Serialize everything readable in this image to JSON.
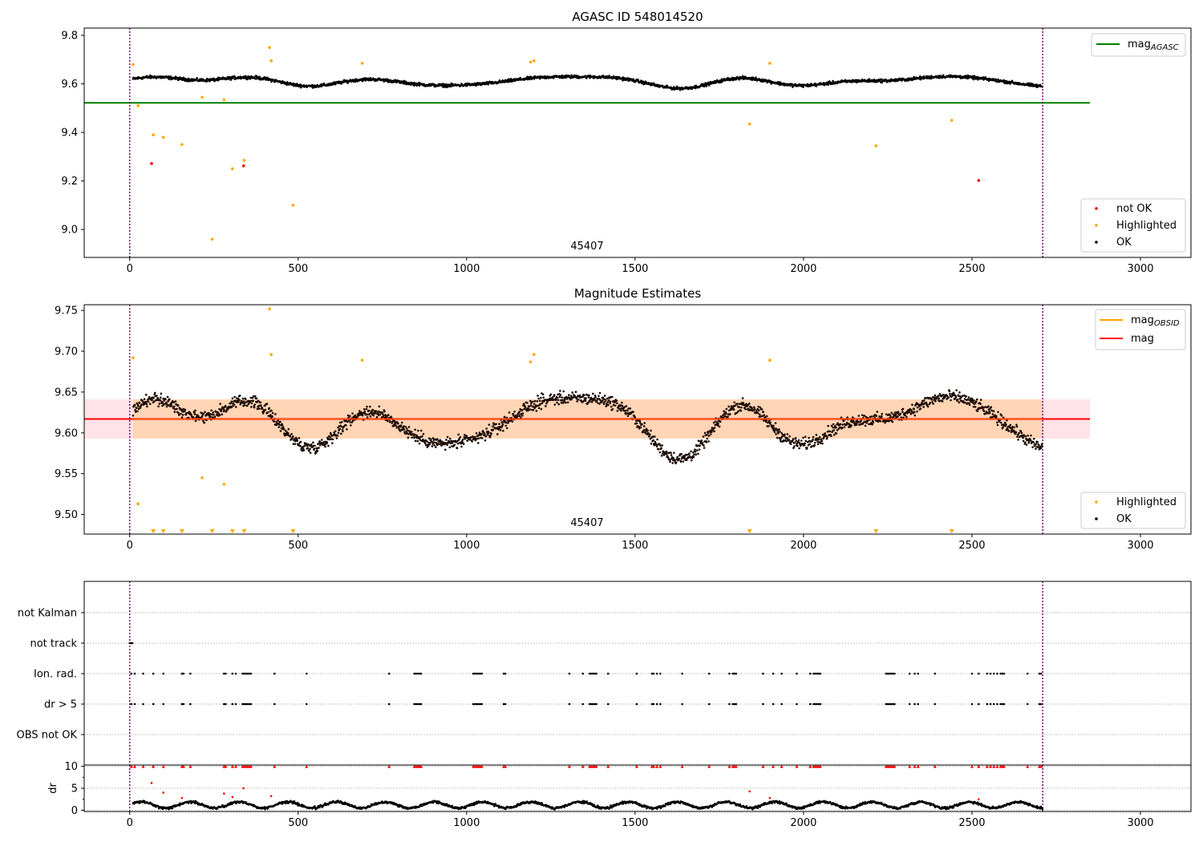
{
  "chart_data": [
    {
      "type": "scatter",
      "title": "AGASC ID 548014520",
      "xlim": [
        -135,
        3150
      ],
      "ylim": [
        8.885,
        9.83
      ],
      "xticks": [
        "0",
        "500",
        "1000",
        "1500",
        "2000",
        "2500",
        "3000"
      ],
      "yticks": [
        "9.0",
        "9.2",
        "9.4",
        "9.6",
        "9.8"
      ],
      "obsid_label": "45407",
      "obsid_boundaries": [
        0,
        2710
      ],
      "legend_top": [
        {
          "label": "mag",
          "sub": "AGASC",
          "color": "#008000"
        }
      ],
      "legend_bottom": [
        {
          "label": "not OK",
          "color": "#ff0000"
        },
        {
          "label": "Highlighted",
          "color": "#ffa500"
        },
        {
          "label": "OK",
          "color": "#000000"
        }
      ],
      "mag_agasc": 9.522,
      "line_x_range": [
        -135,
        2850
      ],
      "ok_trend": {
        "x_range": [
          10,
          2710
        ],
        "base": 9.61,
        "noise": 0.009
      },
      "highlighted_points": [
        [
          10,
          9.68
        ],
        [
          25,
          9.51
        ],
        [
          70,
          9.39
        ],
        [
          100,
          9.38
        ],
        [
          155,
          9.35
        ],
        [
          215,
          9.545
        ],
        [
          245,
          8.96
        ],
        [
          280,
          9.535
        ],
        [
          305,
          9.25
        ],
        [
          340,
          9.285
        ],
        [
          415,
          9.75
        ],
        [
          420,
          9.695
        ],
        [
          485,
          9.1
        ],
        [
          690,
          9.685
        ],
        [
          1190,
          9.69
        ],
        [
          1200,
          9.695
        ],
        [
          1840,
          9.435
        ],
        [
          1900,
          9.685
        ],
        [
          2215,
          9.345
        ],
        [
          2440,
          9.45
        ]
      ],
      "not_ok_points": [
        [
          65,
          9.272
        ],
        [
          338,
          9.262
        ],
        [
          2520,
          9.202
        ]
      ]
    },
    {
      "type": "scatter",
      "title": "Magnitude Estimates",
      "xlim": [
        -135,
        3150
      ],
      "ylim": [
        9.476,
        9.757
      ],
      "xticks": [
        "0",
        "500",
        "1000",
        "1500",
        "2000",
        "2500",
        "3000"
      ],
      "yticks": [
        "9.50",
        "9.55",
        "9.60",
        "9.65",
        "9.70",
        "9.75"
      ],
      "obsid_label": "45407",
      "legend_top": [
        {
          "label": "mag",
          "sub": "OBSID",
          "color": "#ffa500"
        },
        {
          "label": "mag",
          "sub": "",
          "color": "#ff0000"
        }
      ],
      "legend_bottom": [
        {
          "label": "Highlighted",
          "color": "#ffa500"
        },
        {
          "label": "OK",
          "color": "#000000"
        }
      ],
      "mag_mean": 9.617,
      "band": [
        9.593,
        9.641
      ],
      "highlighted_points": [
        [
          10,
          9.692
        ],
        [
          25,
          9.513
        ],
        [
          215,
          9.545
        ],
        [
          280,
          9.537
        ],
        [
          415,
          9.752
        ],
        [
          420,
          9.696
        ],
        [
          690,
          9.689
        ],
        [
          1190,
          9.687
        ],
        [
          1200,
          9.696
        ],
        [
          1900,
          9.689
        ]
      ],
      "below_range_markers": [
        70,
        100,
        155,
        245,
        305,
        340,
        485,
        1840,
        2215,
        2440
      ]
    },
    {
      "type": "scatter",
      "xlim": [
        -135,
        3150
      ],
      "categories": [
        "not Kalman",
        "not track",
        "Ion. rad.",
        "dr > 5",
        "OBS not OK"
      ],
      "flag_x": [
        5,
        15,
        40,
        70,
        100,
        155,
        160,
        180,
        280,
        285,
        305,
        315,
        335,
        340,
        345,
        350,
        355,
        360,
        430,
        525,
        770,
        845,
        850,
        855,
        860,
        865,
        1020,
        1025,
        1030,
        1035,
        1040,
        1045,
        1110,
        1115,
        1305,
        1345,
        1365,
        1370,
        1375,
        1380,
        1385,
        1420,
        1505,
        1550,
        1555,
        1565,
        1575,
        1640,
        1720,
        1780,
        1790,
        1795,
        1800,
        1880,
        1910,
        1935,
        1980,
        2020,
        2030,
        2035,
        2040,
        2045,
        2050,
        2245,
        2250,
        2255,
        2260,
        2265,
        2270,
        2315,
        2330,
        2340,
        2390,
        2500,
        2520,
        2545,
        2555,
        2565,
        2575,
        2585,
        2590,
        2595,
        2665,
        2700,
        2705
      ],
      "not_track_x": [
        0,
        5,
        8
      ]
    },
    {
      "type": "scatter",
      "ylabel": "dr",
      "xlim": [
        -135,
        3150
      ],
      "ylim": [
        -0.3,
        10.3
      ],
      "xticks": [
        "0",
        "500",
        "1000",
        "1500",
        "2000",
        "2500",
        "3000"
      ],
      "yticks": [
        "0",
        "5",
        "10"
      ],
      "dr_trend": {
        "x_range": [
          10,
          2710
        ],
        "base": 1.2
      }
    }
  ]
}
